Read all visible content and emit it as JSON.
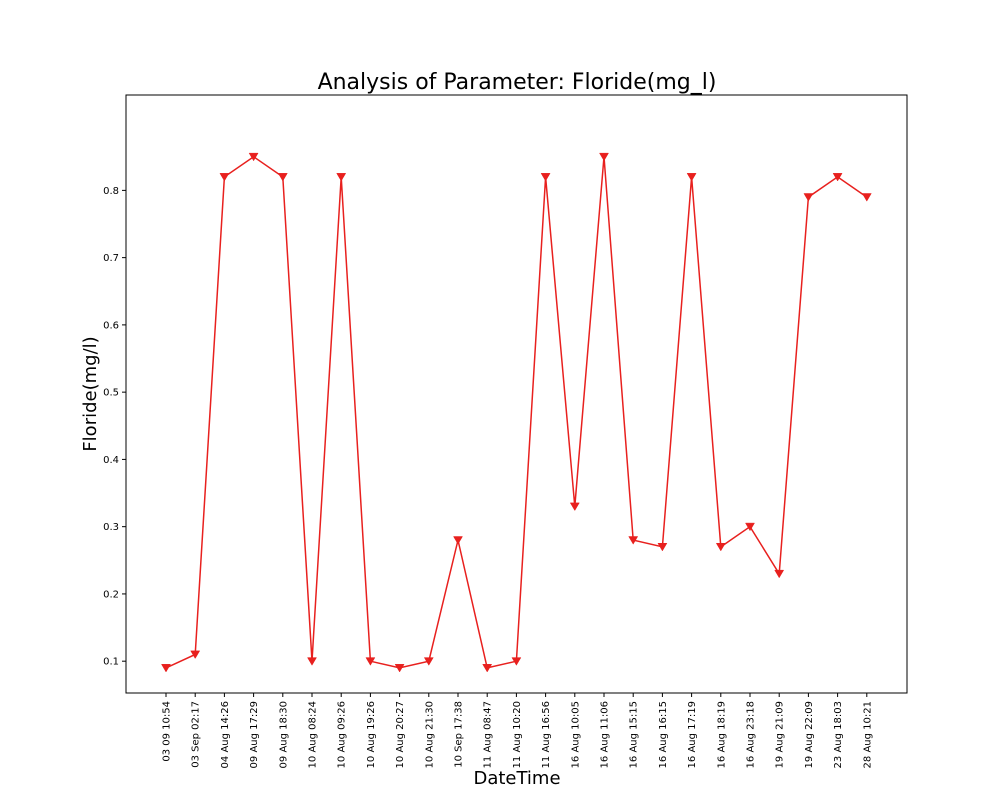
{
  "chart_data": {
    "type": "line",
    "title": "Analysis of Parameter: Floride(mg_l)",
    "xlabel": "DateTime",
    "ylabel": "Floride(mg/l)",
    "categories": [
      "03 09 10:54",
      "03 Sep 02:17",
      "04 Aug 14:26",
      "09 Aug 17:29",
      "09 Aug 18:30",
      "10 Aug 08:24",
      "10 Aug 09:26",
      "10 Aug 19:26",
      "10 Aug 20:27",
      "10 Aug 21:30",
      "10 Sep 17:38",
      "11 Aug 08:47",
      "11 Aug 10:20",
      "11 Aug 16:56",
      "16 Aug 10:05",
      "16 Aug 11:06",
      "16 Aug 15:15",
      "16 Aug 16:15",
      "16 Aug 17:19",
      "16 Aug 18:19",
      "16 Aug 23:18",
      "19 Aug 21:09",
      "19 Aug 22:09",
      "23 Aug 18:03",
      "28 Aug 10:21"
    ],
    "series": [
      {
        "values": [
          0.09,
          0.11,
          0.82,
          0.85,
          0.82,
          0.1,
          0.82,
          0.1,
          0.09,
          0.1,
          0.28,
          0.09,
          0.1,
          0.82,
          0.33,
          0.85,
          0.28,
          0.27,
          0.82,
          0.27,
          0.3,
          0.23,
          0.79,
          0.82,
          0.79
        ],
        "color": "#e8201e",
        "marker": "triangle-down"
      }
    ],
    "yticks": [
      0.1,
      0.2,
      0.3,
      0.4,
      0.5,
      0.6,
      0.7,
      0.8
    ],
    "ylim": [
      0.0527,
      0.9418
    ],
    "grid": false,
    "legend": "none"
  }
}
